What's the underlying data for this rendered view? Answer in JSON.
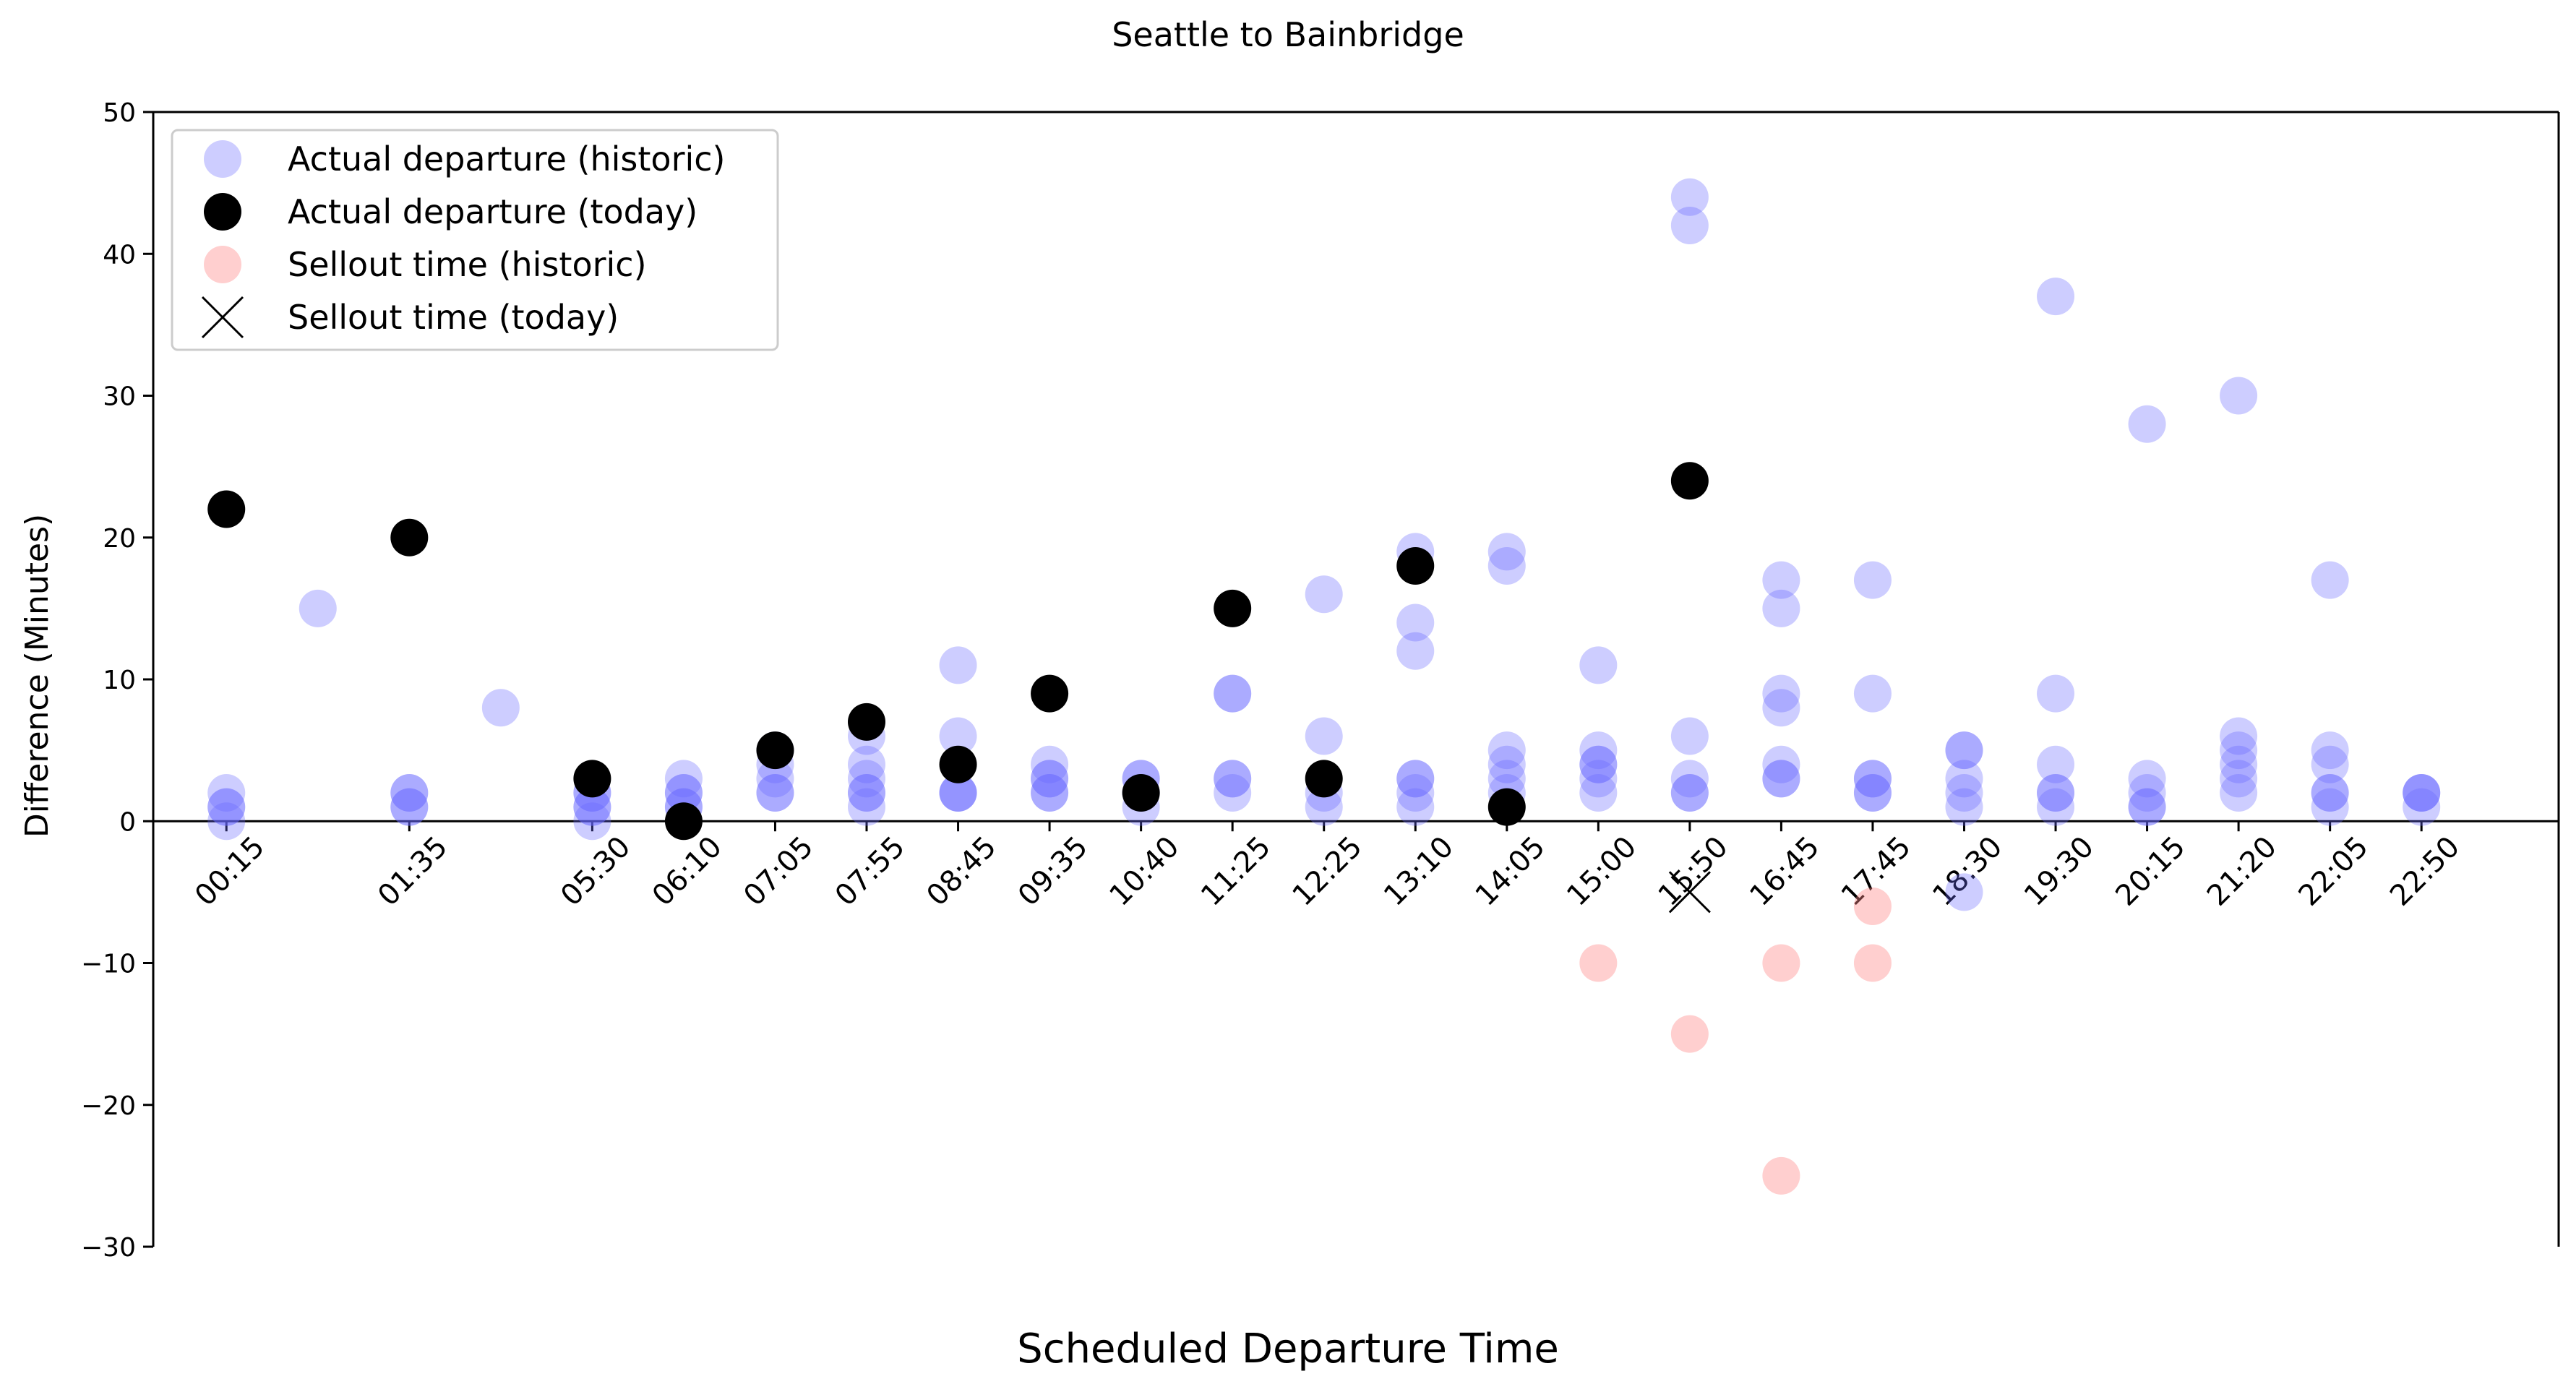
{
  "chart_data": {
    "type": "scatter",
    "title": "Seattle to Bainbridge",
    "xlabel": "Scheduled Departure Time",
    "ylabel": "Difference (Minutes)",
    "ylim": [
      -30,
      50
    ],
    "yticks": [
      -30,
      -20,
      -10,
      0,
      10,
      20,
      30,
      40,
      50
    ],
    "xlim": [
      -0.8,
      25.5
    ],
    "tick_labels": [
      "00:15",
      "01:35",
      "05:30",
      "06:10",
      "07:05",
      "07:55",
      "08:45",
      "09:35",
      "10:40",
      "11:25",
      "12:25",
      "13:10",
      "14:05",
      "15:00",
      "15:50",
      "16:45",
      "17:45",
      "18:30",
      "19:30",
      "20:15",
      "21:20",
      "22:05",
      "22:50"
    ],
    "tick_positions": [
      0,
      2,
      4,
      5,
      6,
      7,
      8,
      9,
      10,
      11,
      12,
      13,
      14,
      15,
      16,
      17,
      18,
      19,
      20,
      21,
      22,
      23,
      24
    ],
    "zero_line": true,
    "legend_position": "top-left",
    "series": [
      {
        "name": "Actual departure (historic)",
        "marker": "circle",
        "color": "#6666ff",
        "opacity": 0.33,
        "points": [
          [
            0,
            2
          ],
          [
            0,
            1
          ],
          [
            0,
            0
          ],
          [
            0,
            1
          ],
          [
            1,
            15
          ],
          [
            2,
            2
          ],
          [
            2,
            1
          ],
          [
            2,
            2
          ],
          [
            2,
            1
          ],
          [
            3,
            8
          ],
          [
            4,
            2
          ],
          [
            4,
            1
          ],
          [
            4,
            0
          ],
          [
            4,
            1
          ],
          [
            4,
            2
          ],
          [
            5,
            3
          ],
          [
            5,
            2
          ],
          [
            5,
            1
          ],
          [
            5,
            2
          ],
          [
            5,
            1
          ],
          [
            6,
            5
          ],
          [
            6,
            3
          ],
          [
            6,
            2
          ],
          [
            6,
            4
          ],
          [
            6,
            2
          ],
          [
            7,
            6
          ],
          [
            7,
            4
          ],
          [
            7,
            3
          ],
          [
            7,
            2
          ],
          [
            7,
            1
          ],
          [
            7,
            2
          ],
          [
            8,
            11
          ],
          [
            8,
            6
          ],
          [
            8,
            2
          ],
          [
            8,
            2
          ],
          [
            8,
            2
          ],
          [
            9,
            4
          ],
          [
            9,
            3
          ],
          [
            9,
            2
          ],
          [
            9,
            2
          ],
          [
            9,
            3
          ],
          [
            10,
            3
          ],
          [
            10,
            2
          ],
          [
            10,
            2
          ],
          [
            10,
            1
          ],
          [
            10,
            3
          ],
          [
            11,
            9
          ],
          [
            11,
            9
          ],
          [
            11,
            3
          ],
          [
            11,
            2
          ],
          [
            11,
            3
          ],
          [
            12,
            16
          ],
          [
            12,
            6
          ],
          [
            12,
            2
          ],
          [
            12,
            1
          ],
          [
            13,
            19
          ],
          [
            13,
            14
          ],
          [
            13,
            12
          ],
          [
            13,
            3
          ],
          [
            13,
            2
          ],
          [
            13,
            1
          ],
          [
            13,
            3
          ],
          [
            14,
            19
          ],
          [
            14,
            18
          ],
          [
            14,
            5
          ],
          [
            14,
            4
          ],
          [
            14,
            3
          ],
          [
            14,
            2
          ],
          [
            15,
            11
          ],
          [
            15,
            5
          ],
          [
            15,
            4
          ],
          [
            15,
            3
          ],
          [
            15,
            2
          ],
          [
            15,
            4
          ],
          [
            16,
            44
          ],
          [
            16,
            42
          ],
          [
            16,
            6
          ],
          [
            16,
            3
          ],
          [
            16,
            2
          ],
          [
            16,
            2
          ],
          [
            17,
            17
          ],
          [
            17,
            15
          ],
          [
            17,
            9
          ],
          [
            17,
            8
          ],
          [
            17,
            4
          ],
          [
            17,
            3
          ],
          [
            17,
            3
          ],
          [
            18,
            17
          ],
          [
            18,
            9
          ],
          [
            18,
            3
          ],
          [
            18,
            2
          ],
          [
            18,
            2
          ],
          [
            18,
            3
          ],
          [
            19,
            5
          ],
          [
            19,
            5
          ],
          [
            19,
            3
          ],
          [
            19,
            2
          ],
          [
            19,
            1
          ],
          [
            19,
            -5
          ],
          [
            20,
            37
          ],
          [
            20,
            9
          ],
          [
            20,
            4
          ],
          [
            20,
            2
          ],
          [
            20,
            1
          ],
          [
            20,
            2
          ],
          [
            21,
            28
          ],
          [
            21,
            3
          ],
          [
            21,
            2
          ],
          [
            21,
            1
          ],
          [
            21,
            1
          ],
          [
            22,
            30
          ],
          [
            22,
            6
          ],
          [
            22,
            5
          ],
          [
            22,
            4
          ],
          [
            22,
            3
          ],
          [
            22,
            2
          ],
          [
            23,
            17
          ],
          [
            23,
            5
          ],
          [
            23,
            4
          ],
          [
            23,
            2
          ],
          [
            23,
            1
          ],
          [
            23,
            2
          ],
          [
            24,
            2
          ],
          [
            24,
            1
          ],
          [
            24,
            2
          ],
          [
            24,
            2
          ]
        ]
      },
      {
        "name": "Actual departure (today)",
        "marker": "circle",
        "color": "#000000",
        "opacity": 1,
        "points": [
          [
            0,
            22
          ],
          [
            2,
            20
          ],
          [
            4,
            3
          ],
          [
            5,
            0
          ],
          [
            6,
            5
          ],
          [
            7,
            7
          ],
          [
            8,
            4
          ],
          [
            9,
            9
          ],
          [
            10,
            2
          ],
          [
            11,
            15
          ],
          [
            12,
            3
          ],
          [
            13,
            18
          ],
          [
            14,
            1
          ],
          [
            16,
            24
          ]
        ]
      },
      {
        "name": "Sellout time (historic)",
        "marker": "circle",
        "color": "#ff8888",
        "opacity": 0.4,
        "points": [
          [
            15,
            -10
          ],
          [
            16,
            -15
          ],
          [
            17,
            -10
          ],
          [
            17,
            -25
          ],
          [
            18,
            -10
          ],
          [
            18,
            -6
          ]
        ]
      },
      {
        "name": "Sellout time (today)",
        "marker": "x",
        "color": "#000000",
        "opacity": 1,
        "points": [
          [
            16,
            -5
          ]
        ]
      }
    ]
  }
}
